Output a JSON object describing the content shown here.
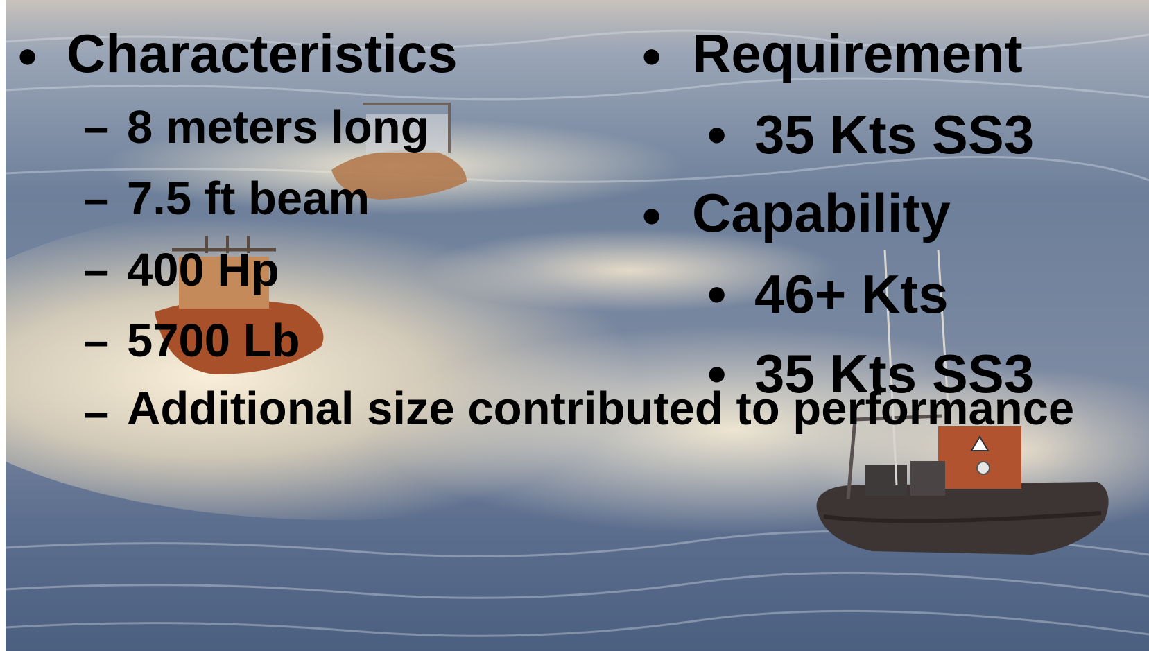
{
  "background": {
    "photo": "speedboats-on-sea",
    "colors": {
      "sky_sea_light": "#d9cfbf",
      "sea_blue": "#5a7092",
      "spray_cream": "#f3e6c8",
      "boat_orange": "#a5532a",
      "boat_hull": "#3a2e2c"
    }
  },
  "left": {
    "heading_marker": "•",
    "heading": "Characteristics",
    "sub_marker": "–",
    "items": [
      "8 meters long",
      "7.5 ft beam",
      "400 Hp",
      "5700 Lb",
      "Additional size contributed to performance"
    ]
  },
  "right": {
    "marker": "•",
    "sections": [
      {
        "heading": "Requirement",
        "items": [
          "35 Kts SS3"
        ]
      },
      {
        "heading": "Capability",
        "items": [
          "46+ Kts",
          "35 Kts SS3"
        ]
      }
    ]
  }
}
